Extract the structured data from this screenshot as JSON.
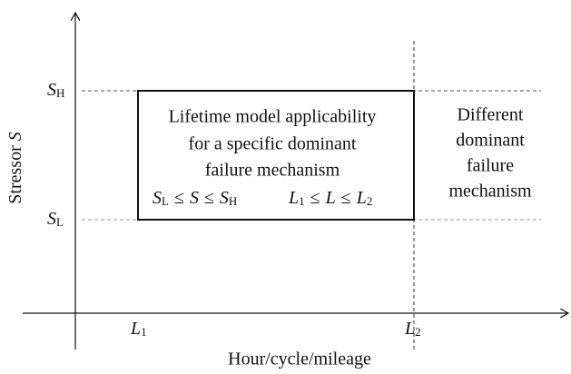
{
  "axes": {
    "y_label": {
      "text": "Stressor",
      "var": "S"
    },
    "x_label": "Hour/cycle/mileage"
  },
  "y_levels": [
    {
      "main": "S",
      "sub": "H"
    },
    {
      "main": "S",
      "sub": "L"
    }
  ],
  "x_levels": [
    {
      "main": "L",
      "sub": "1"
    },
    {
      "main": "L",
      "sub": "2"
    }
  ],
  "box": {
    "lines": [
      "Lifetime model applicability",
      "for a specific dominant",
      "failure mechanism"
    ],
    "conditions": [
      {
        "lower": {
          "main": "S",
          "sub": "L"
        },
        "op": "≤",
        "var": "S",
        "upper": {
          "main": "S",
          "sub": "H"
        }
      },
      {
        "lower": {
          "main": "L",
          "sub": "1"
        },
        "op": "≤",
        "var": "L",
        "upper": {
          "main": "L",
          "sub": "2"
        }
      }
    ]
  },
  "outside": {
    "lines": [
      "Different",
      "dominant",
      "failure",
      "mechanism"
    ]
  }
}
